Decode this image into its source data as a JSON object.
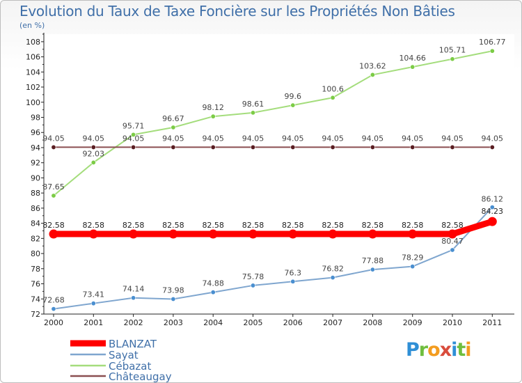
{
  "header": {
    "title": "Evolution du Taux de Taxe Foncière sur les Propriétés Non Bâties",
    "unit": "(en %)"
  },
  "logo": {
    "letters": [
      "P",
      "r",
      "o",
      "x",
      "i",
      "t",
      "i"
    ],
    "colors": [
      "#2f8fd6",
      "#6fbe3e",
      "#f39c1f",
      "#d94c3c",
      "#2f8fd6",
      "#6fbe3e",
      "#f39c1f"
    ]
  },
  "chart_data": {
    "type": "line",
    "title": "Evolution du Taux de Taxe Foncière sur les Propriétés Non Bâties",
    "ylabel": "(en %)",
    "xlabel": "",
    "categories": [
      "2000",
      "2001",
      "2002",
      "2003",
      "2004",
      "2005",
      "2006",
      "2007",
      "2008",
      "2009",
      "2010",
      "2011"
    ],
    "ylim": [
      72,
      109
    ],
    "yticks": [
      72,
      74,
      76,
      78,
      80,
      82,
      84,
      86,
      88,
      90,
      92,
      94,
      96,
      98,
      100,
      102,
      104,
      106,
      108
    ],
    "legend_position": "bottom-left",
    "series": [
      {
        "name": "BLANZAT",
        "color": "#ff0000",
        "label_color": "#222222",
        "values": [
          82.58,
          82.58,
          82.58,
          82.58,
          82.58,
          82.58,
          82.58,
          82.58,
          82.58,
          82.58,
          82.58,
          84.23
        ],
        "labels": [
          "82.58",
          "82.58",
          "82.58",
          "82.58",
          "82.58",
          "82.58",
          "82.58",
          "82.58",
          "82.58",
          "82.58",
          "82.58",
          "84.23"
        ]
      },
      {
        "name": "Sayat",
        "color": "#7fa6cf",
        "marker": "#4a8fd0",
        "label_color": "#444444",
        "values": [
          72.68,
          73.41,
          74.14,
          73.98,
          74.88,
          75.78,
          76.3,
          76.82,
          77.88,
          78.29,
          80.47,
          86.12
        ],
        "labels": [
          "72.68",
          "73.41",
          "74.14",
          "73.98",
          "74.88",
          "75.78",
          "76.3",
          "76.82",
          "77.88",
          "78.29",
          "80.47",
          "86.12"
        ]
      },
      {
        "name": "Cébazat",
        "color": "#a4dd7c",
        "marker": "#7ccc46",
        "label_color": "#444444",
        "values": [
          87.65,
          92.03,
          95.71,
          96.67,
          98.12,
          98.61,
          99.6,
          100.6,
          103.62,
          104.66,
          105.71,
          106.77
        ],
        "labels": [
          "87.65",
          "92.03",
          "95.71",
          "96.67",
          "98.12",
          "98.61",
          "99.6",
          "100.6",
          "103.62",
          "104.66",
          "105.71",
          "106.77"
        ]
      },
      {
        "name": "Châteaugay",
        "color": "#8a4e50",
        "marker": "#5a1e22",
        "label_color": "#444444",
        "values": [
          94.05,
          94.05,
          94.05,
          94.05,
          94.05,
          94.05,
          94.05,
          94.05,
          94.05,
          94.05,
          94.05,
          94.05
        ],
        "labels": [
          "94.05",
          "94.05",
          "94.05",
          "94.05",
          "94.05",
          "94.05",
          "94.05",
          "94.05",
          "94.05",
          "94.05",
          "94.05",
          "94.05"
        ]
      }
    ]
  }
}
